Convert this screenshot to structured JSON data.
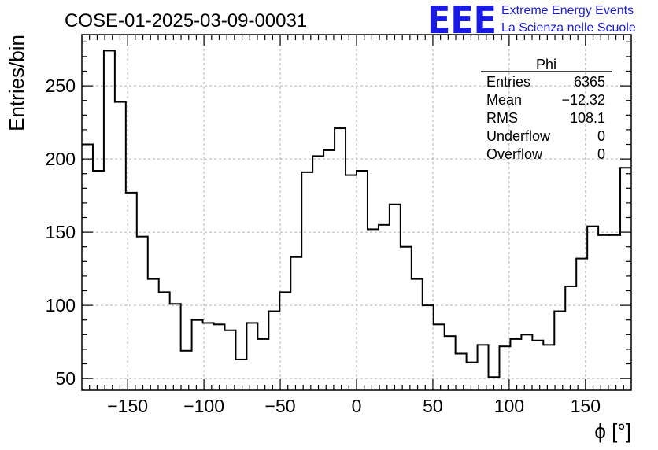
{
  "logo": {
    "mark": "EEE",
    "line1": "Extreme Energy Events",
    "line2": "La Scienza nelle Scuole"
  },
  "stats": {
    "title": "Phi",
    "rows": [
      {
        "label": "Entries",
        "value": "6365"
      },
      {
        "label": "Mean",
        "value": "−12.32"
      },
      {
        "label": "RMS",
        "value": "108.1"
      },
      {
        "label": "Underflow",
        "value": "0"
      },
      {
        "label": "Overflow",
        "value": "0"
      }
    ]
  },
  "chart_data": {
    "type": "histogram",
    "title": "COSE-01-2025-03-09-00031",
    "xlabel": "ϕ [°]",
    "ylabel": "Entries/bin",
    "xlim": [
      -180,
      180
    ],
    "ylim": [
      42,
      285
    ],
    "bin_width": 7.2,
    "xticks": [
      -150,
      -100,
      -50,
      0,
      50,
      100,
      150
    ],
    "xtick_labels": [
      "−150",
      "−100",
      "−50",
      "0",
      "50",
      "100",
      "150"
    ],
    "yticks": [
      50,
      100,
      150,
      200,
      250
    ],
    "ytick_labels": [
      "50",
      "100",
      "150",
      "200",
      "250"
    ],
    "grid": true,
    "legend": "top-right stats box",
    "bin_edges_start": -180,
    "values": [
      210,
      192,
      274,
      239,
      177,
      147,
      118,
      109,
      101,
      69,
      90,
      88,
      87,
      83,
      63,
      88,
      77,
      96,
      109,
      133,
      191,
      202,
      206,
      221,
      189,
      192,
      152,
      155,
      169,
      140,
      118,
      100,
      87,
      79,
      67,
      61,
      73,
      51,
      72,
      77,
      80,
      76,
      73,
      96,
      113,
      132,
      154,
      148,
      148,
      194
    ],
    "line_color": "#000000",
    "grid_color": "#b0b0b0"
  }
}
